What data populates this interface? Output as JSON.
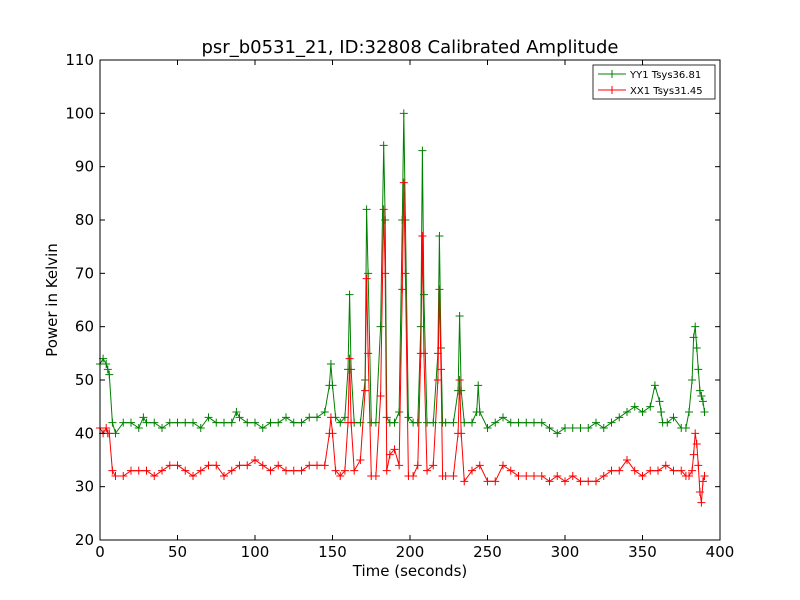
{
  "chart_data": {
    "type": "line",
    "title": "psr_b0531_21, ID:32808 Calibrated Amplitude",
    "xlabel": "Time (seconds)",
    "ylabel": "Power in Kelvin",
    "xlim": [
      0,
      400
    ],
    "ylim": [
      20,
      110
    ],
    "xticks": [
      "0",
      "50",
      "100",
      "150",
      "200",
      "250",
      "300",
      "350",
      "400"
    ],
    "yticks": [
      "20",
      "30",
      "40",
      "50",
      "60",
      "70",
      "80",
      "90",
      "100",
      "110"
    ],
    "grid": false,
    "legend_position": "top-right",
    "marker": "plus",
    "series": [
      {
        "name": "YY1 Tsys36.81",
        "color": "#008000",
        "x": [
          0,
          2,
          4,
          5,
          6,
          8,
          10,
          15,
          20,
          25,
          28,
          30,
          35,
          40,
          45,
          50,
          55,
          60,
          65,
          70,
          75,
          80,
          85,
          88,
          90,
          95,
          100,
          105,
          110,
          115,
          120,
          125,
          130,
          135,
          140,
          145,
          148,
          149,
          150,
          152,
          155,
          158,
          160,
          161,
          162,
          164,
          168,
          171,
          172,
          173,
          175,
          178,
          181,
          183,
          184,
          185,
          187,
          190,
          193,
          195,
          196,
          197,
          199,
          202,
          205,
          207,
          208,
          209,
          211,
          215,
          218,
          219,
          220,
          221,
          223,
          228,
          231,
          232,
          233,
          235,
          240,
          243,
          244,
          245,
          250,
          255,
          260,
          265,
          270,
          275,
          280,
          285,
          290,
          295,
          300,
          305,
          310,
          315,
          320,
          325,
          330,
          335,
          340,
          345,
          350,
          355,
          358,
          361,
          362,
          363,
          366,
          370,
          375,
          378,
          380,
          382,
          383,
          384,
          385,
          386,
          387,
          388,
          389,
          390
        ],
        "y": [
          53,
          54,
          53,
          52,
          51,
          42,
          40,
          42,
          42,
          41,
          43,
          42,
          42,
          41,
          42,
          42,
          42,
          42,
          41,
          43,
          42,
          42,
          42,
          44,
          43,
          42,
          42,
          41,
          42,
          42,
          43,
          42,
          42,
          43,
          43,
          44,
          49,
          53,
          49,
          43,
          42,
          43,
          52,
          66,
          52,
          42,
          42,
          50,
          82,
          70,
          42,
          42,
          60,
          94,
          80,
          43,
          42,
          42,
          44,
          80,
          100,
          80,
          43,
          42,
          42,
          60,
          93,
          66,
          42,
          42,
          55,
          77,
          56,
          42,
          42,
          42,
          48,
          62,
          48,
          42,
          42,
          44,
          49,
          44,
          41,
          42,
          43,
          42,
          42,
          42,
          42,
          42,
          41,
          40,
          41,
          41,
          41,
          41,
          42,
          41,
          42,
          43,
          44,
          45,
          44,
          45,
          49,
          46,
          44,
          42,
          42,
          43,
          41,
          41,
          44,
          50,
          58,
          60,
          56,
          52,
          48,
          47,
          46,
          44
        ]
      },
      {
        "name": "XX1 Tsys31.45",
        "color": "#ff0000",
        "x": [
          0,
          2,
          4,
          5,
          6,
          8,
          10,
          15,
          20,
          25,
          30,
          35,
          40,
          45,
          50,
          55,
          60,
          65,
          70,
          75,
          80,
          85,
          90,
          95,
          100,
          105,
          110,
          115,
          120,
          125,
          130,
          135,
          140,
          145,
          148,
          149,
          150,
          152,
          155,
          158,
          160,
          161,
          162,
          164,
          168,
          171,
          172,
          173,
          175,
          178,
          181,
          183,
          184,
          185,
          187,
          190,
          193,
          195,
          196,
          197,
          199,
          202,
          205,
          207,
          208,
          209,
          211,
          215,
          218,
          219,
          220,
          221,
          223,
          228,
          231,
          232,
          233,
          235,
          240,
          245,
          250,
          255,
          260,
          265,
          270,
          275,
          280,
          285,
          290,
          295,
          300,
          305,
          310,
          315,
          320,
          325,
          330,
          335,
          340,
          345,
          350,
          355,
          360,
          365,
          370,
          375,
          378,
          380,
          382,
          383,
          384,
          385,
          386,
          387,
          388,
          389,
          390
        ],
        "y": [
          41,
          40,
          41,
          40,
          40,
          33,
          32,
          32,
          33,
          33,
          33,
          32,
          33,
          34,
          34,
          33,
          32,
          33,
          34,
          34,
          32,
          33,
          34,
          34,
          35,
          34,
          33,
          34,
          33,
          33,
          33,
          34,
          34,
          34,
          40,
          43,
          40,
          33,
          32,
          33,
          42,
          54,
          42,
          33,
          35,
          48,
          69,
          55,
          32,
          32,
          47,
          82,
          70,
          33,
          36,
          37,
          34,
          67,
          87,
          70,
          32,
          32,
          34,
          55,
          77,
          55,
          33,
          34,
          50,
          67,
          52,
          32,
          32,
          32,
          40,
          50,
          40,
          31,
          33,
          34,
          31,
          31,
          34,
          33,
          32,
          32,
          32,
          32,
          31,
          32,
          31,
          32,
          31,
          31,
          31,
          32,
          33,
          33,
          35,
          33,
          32,
          33,
          33,
          34,
          33,
          33,
          32,
          32,
          33,
          36,
          40,
          38,
          34,
          29,
          27,
          31,
          32
        ]
      }
    ]
  }
}
